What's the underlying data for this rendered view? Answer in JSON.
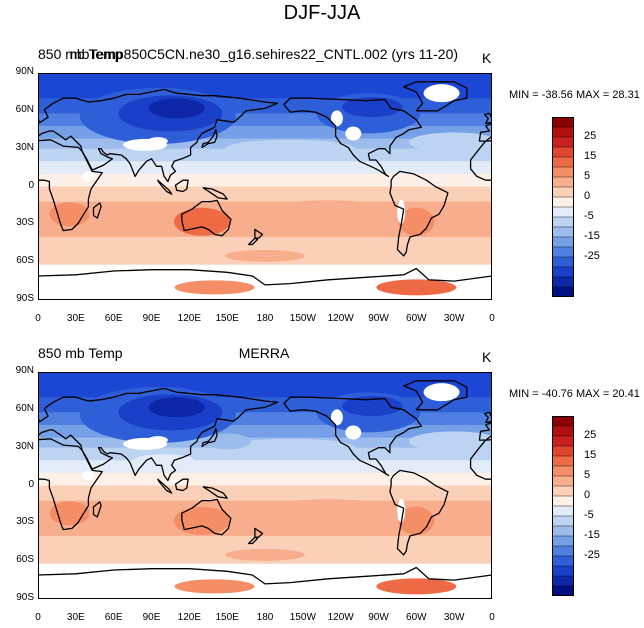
{
  "figure": {
    "title": "DJF-JJA"
  },
  "chart_data": [
    {
      "type": "heatmap",
      "variable_label": "850 mb Temp",
      "case_label": "mbTemp850C5CN.ne30_g16.sehires22_CNTL.002 (yrs 11-20)",
      "units": "K",
      "min": -38.56,
      "max": 28.31,
      "minmax_text": "MIN = -38.56 MAX =  28.31",
      "lat_ticks": [
        "90N",
        "60N",
        "30N",
        "0",
        "30S",
        "60S",
        "90S"
      ],
      "lon_ticks": [
        "0",
        "30E",
        "60E",
        "90E",
        "120E",
        "150E",
        "180",
        "150W",
        "120W",
        "90W",
        "60W",
        "30W",
        "0"
      ],
      "colorbar_ticks": [
        "25",
        "15",
        "5",
        "0",
        "-5",
        "-15",
        "-25"
      ]
    },
    {
      "type": "heatmap",
      "variable_label": "850 mb Temp",
      "case_label": "MERRA",
      "units": "K",
      "min": -40.76,
      "max": 20.41,
      "minmax_text": "MIN = -40.76 MAX =  20.41",
      "lat_ticks": [
        "90N",
        "60N",
        "30N",
        "0",
        "30S",
        "60S",
        "90S"
      ],
      "lon_ticks": [
        "0",
        "30E",
        "60E",
        "90E",
        "120E",
        "150E",
        "180",
        "150W",
        "120W",
        "90W",
        "60W",
        "30W",
        "0"
      ],
      "colorbar_ticks": [
        "25",
        "15",
        "5",
        "0",
        "-5",
        "-15",
        "-25"
      ]
    }
  ],
  "colorbar_colors": [
    "#8b0000",
    "#b01010",
    "#cc2020",
    "#e0452d",
    "#ee6a45",
    "#f58d66",
    "#f8ae8c",
    "#fad0b8",
    "#fdf0e6",
    "#e2ecf8",
    "#bdd3f2",
    "#9bbcec",
    "#759fe6",
    "#4f7fe0",
    "#2f5fd8",
    "#1a3fc8",
    "#0d27a8",
    "#001080"
  ],
  "colors": {
    "land_outline": "#000000",
    "missing": "#ffffff"
  }
}
